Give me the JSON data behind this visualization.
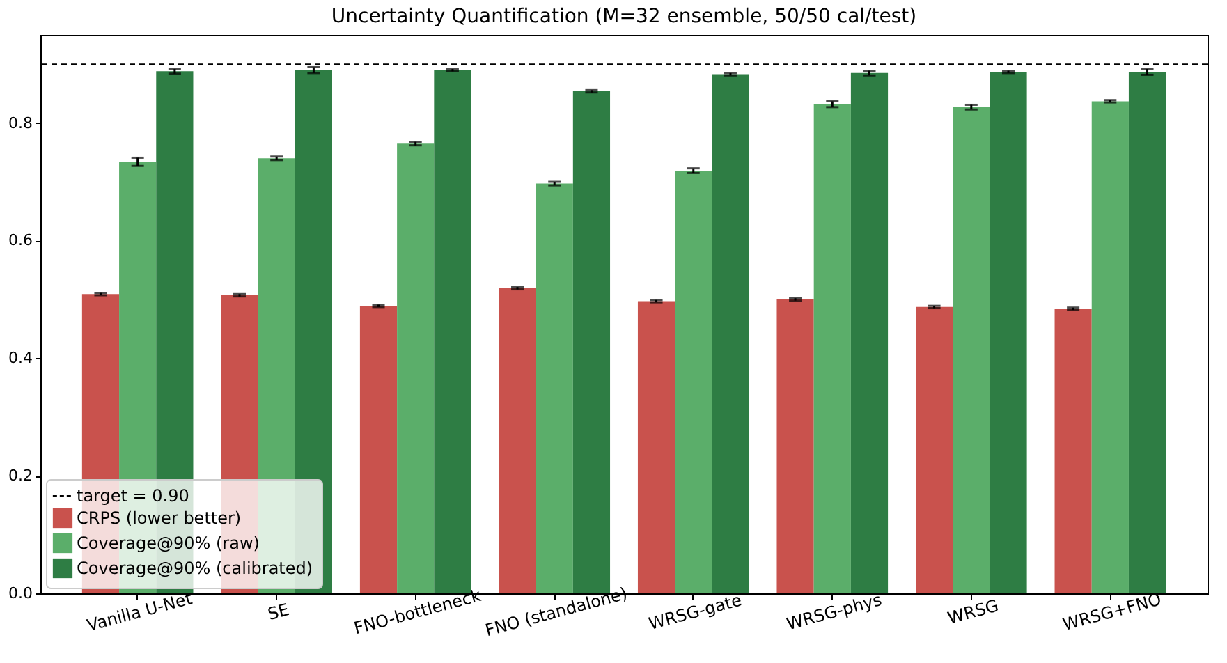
{
  "chart_data": {
    "type": "bar",
    "title": "Uncertainty Quantification (M=32 ensemble, 50/50 cal/test)",
    "categories": [
      "Vanilla U-Net",
      "SE",
      "FNO-bottleneck",
      "FNO (standalone)",
      "WRSG-gate",
      "WRSG-phys",
      "WRSG",
      "WRSG+FNO"
    ],
    "series": [
      {
        "name": "CRPS (lower better)",
        "color": "#c9524d",
        "values": [
          0.509,
          0.507,
          0.489,
          0.519,
          0.497,
          0.5,
          0.487,
          0.484
        ],
        "errors": [
          0.002,
          0.002,
          0.002,
          0.002,
          0.002,
          0.002,
          0.002,
          0.002
        ]
      },
      {
        "name": "Coverage@90% (raw)",
        "color": "#5bae6a",
        "values": [
          0.734,
          0.74,
          0.765,
          0.697,
          0.719,
          0.832,
          0.827,
          0.837
        ],
        "errors": [
          0.007,
          0.003,
          0.003,
          0.003,
          0.004,
          0.005,
          0.004,
          0.002
        ]
      },
      {
        "name": "Coverage@90% (calibrated)",
        "color": "#2e7d44",
        "values": [
          0.888,
          0.89,
          0.89,
          0.854,
          0.883,
          0.885,
          0.887,
          0.887
        ],
        "errors": [
          0.004,
          0.005,
          0.002,
          0.002,
          0.002,
          0.004,
          0.002,
          0.005
        ]
      }
    ],
    "ref_lines": [
      {
        "axis": "y",
        "value": 0.9,
        "label": "target = 0.90",
        "color": "#000000",
        "line_style": "dashed"
      }
    ],
    "ylim": [
      0,
      0.95
    ],
    "yticks": [
      {
        "value": 0,
        "label": "0.0"
      },
      {
        "value": 0.2,
        "label": "0.2"
      },
      {
        "value": 0.4,
        "label": "0.4"
      },
      {
        "value": 0.6,
        "label": "0.6"
      },
      {
        "value": 0.8,
        "label": "0.8"
      }
    ],
    "grid": false,
    "legend": "bottom left"
  }
}
